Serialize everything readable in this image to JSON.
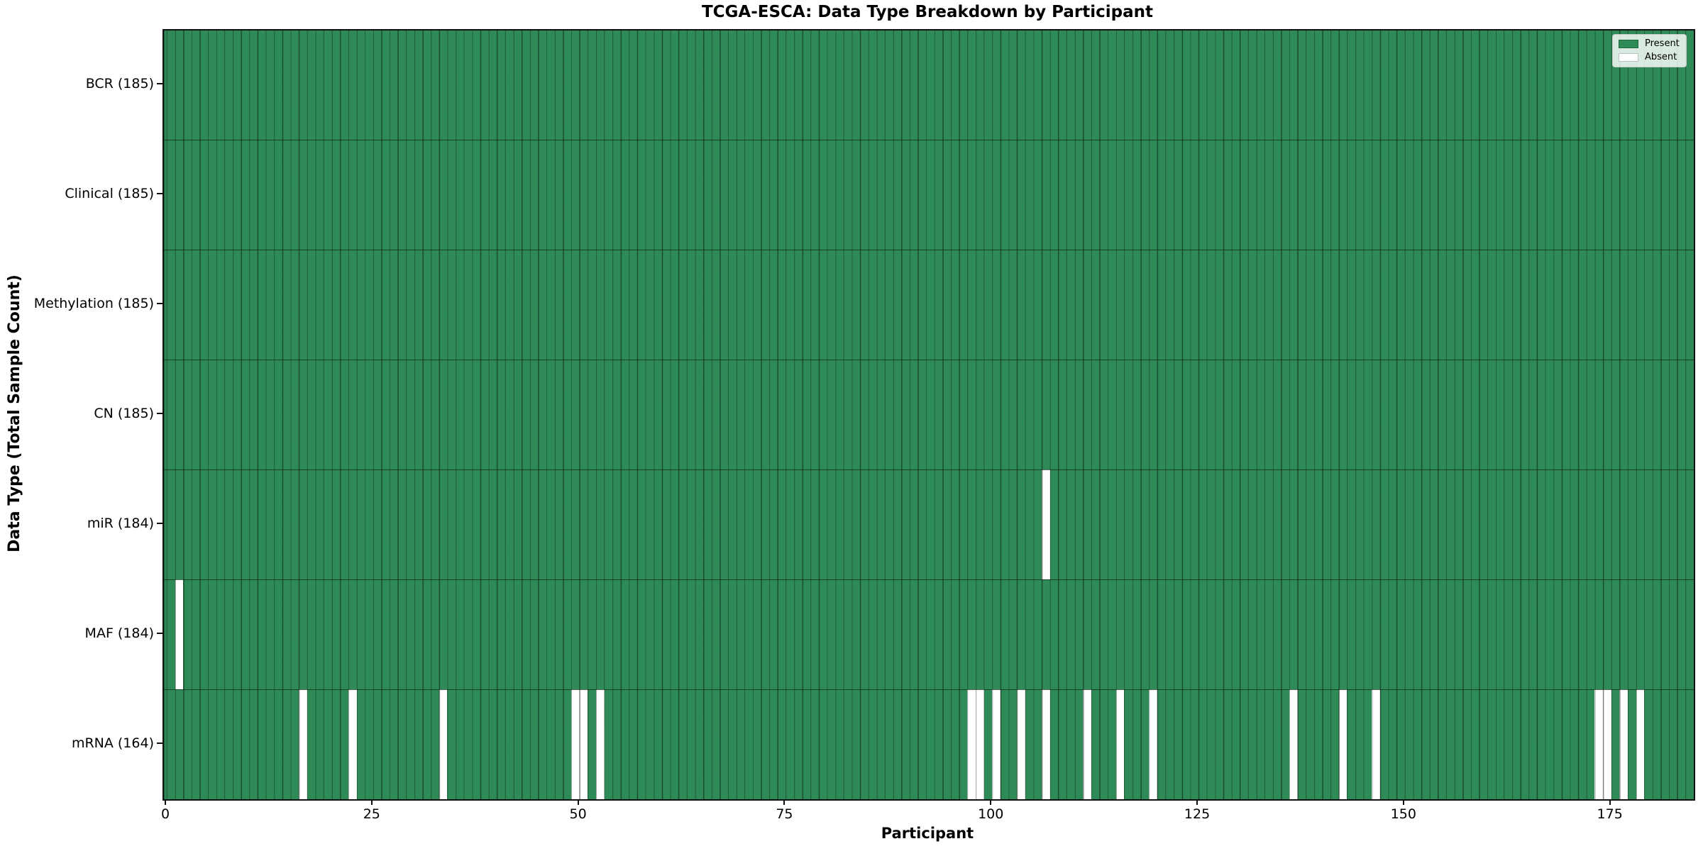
{
  "figure": {
    "title": "TCGA-ESCA: Data Type Breakdown by Participant",
    "x_axis_label": "Participant",
    "y_axis_label": "Data Type (Total Sample Count)"
  },
  "legend": {
    "position": "upper right",
    "items": [
      {
        "label": "Present",
        "color": "#2e8b57"
      },
      {
        "label": "Absent",
        "color": "#ffffff"
      }
    ]
  },
  "chart_data": {
    "type": "heatmap",
    "title": "TCGA-ESCA: Data Type Breakdown by Participant",
    "xlabel": "Participant",
    "ylabel": "Data Type (Total Sample Count)",
    "x_ticks": [
      0,
      25,
      50,
      75,
      100,
      125,
      150,
      175
    ],
    "x_range": [
      0,
      185
    ],
    "n_participants": 185,
    "cell_values": {
      "present_label": "Present",
      "absent_label": "Absent"
    },
    "rows": [
      {
        "label": "BCR (185)",
        "data_type": "BCR",
        "total_sample_count": 185,
        "absent_participants": []
      },
      {
        "label": "Clinical (185)",
        "data_type": "Clinical",
        "total_sample_count": 185,
        "absent_participants": []
      },
      {
        "label": "Methylation (185)",
        "data_type": "Methylation",
        "total_sample_count": 185,
        "absent_participants": []
      },
      {
        "label": "CN (185)",
        "data_type": "CN",
        "total_sample_count": 185,
        "absent_participants": []
      },
      {
        "label": "miR (184)",
        "data_type": "miR",
        "total_sample_count": 184,
        "absent_participants": [
          106
        ]
      },
      {
        "label": "MAF (184)",
        "data_type": "MAF",
        "total_sample_count": 184,
        "absent_participants": [
          1
        ]
      },
      {
        "label": "mRNA (164)",
        "data_type": "mRNA",
        "total_sample_count": 164,
        "absent_participants": [
          16,
          22,
          33,
          49,
          50,
          52,
          97,
          98,
          100,
          103,
          106,
          111,
          115,
          119,
          136,
          142,
          146,
          173,
          174,
          176,
          178
        ]
      }
    ],
    "colors": {
      "present": "#2e8b57",
      "absent": "#ffffff",
      "cell_edge": "rgba(10,25,15,0.55)",
      "row_separator": "rgba(10,25,15,0.65)"
    },
    "grid": "cell-edges",
    "legend_position": "upper right"
  }
}
